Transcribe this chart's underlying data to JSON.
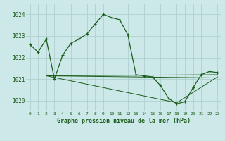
{
  "background_color": "#cde8e8",
  "grid_color": "#b0d0d0",
  "line_color": "#1a5c1a",
  "title": "Graphe pression niveau de la mer (hPa)",
  "title_color": "#1a5c1a",
  "xlim": [
    -0.5,
    23.5
  ],
  "ylim": [
    1019.5,
    1024.5
  ],
  "yticks": [
    1020,
    1021,
    1022,
    1023,
    1024
  ],
  "xticks": [
    0,
    1,
    2,
    3,
    4,
    5,
    6,
    7,
    8,
    9,
    10,
    11,
    12,
    13,
    14,
    15,
    16,
    17,
    18,
    19,
    20,
    21,
    22,
    23
  ],
  "main_series": {
    "x": [
      0,
      1,
      2,
      3,
      4,
      5,
      6,
      7,
      8,
      9,
      10,
      11,
      12,
      13,
      14,
      15,
      16,
      17,
      18,
      19,
      20,
      21,
      22,
      23
    ],
    "y": [
      1022.6,
      1022.25,
      1022.85,
      1021.0,
      1022.1,
      1022.65,
      1022.85,
      1023.1,
      1023.55,
      1024.0,
      1023.85,
      1023.75,
      1023.05,
      1021.2,
      1021.15,
      1021.1,
      1020.7,
      1020.1,
      1019.85,
      1019.95,
      1020.6,
      1021.2,
      1021.35,
      1021.3
    ]
  },
  "extra_lines": [
    {
      "x": [
        2,
        23
      ],
      "y": [
        1021.15,
        1021.2
      ]
    },
    {
      "x": [
        2,
        23
      ],
      "y": [
        1021.15,
        1021.05
      ]
    },
    {
      "x": [
        2,
        18,
        23
      ],
      "y": [
        1021.15,
        1019.9,
        1021.1
      ]
    }
  ],
  "figsize": [
    3.2,
    2.0
  ],
  "dpi": 100
}
